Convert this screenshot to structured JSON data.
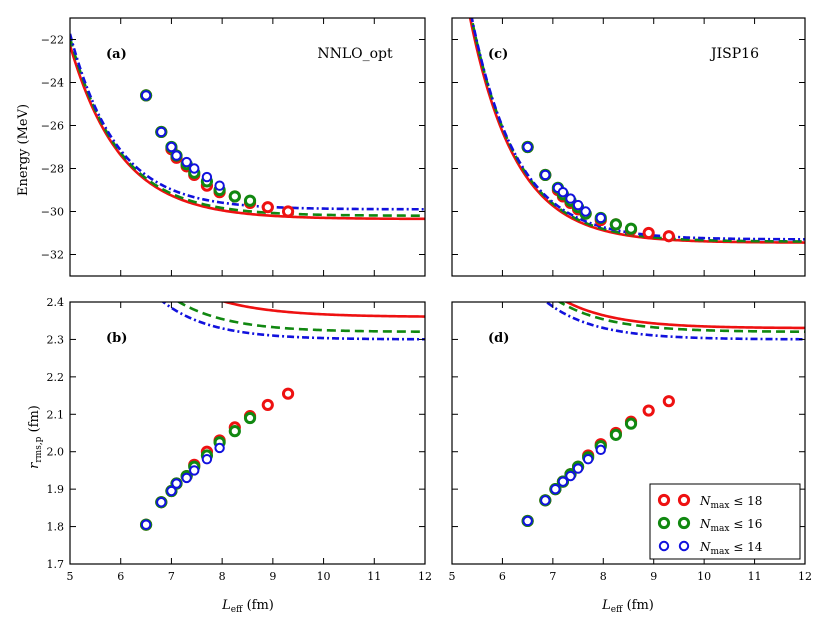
{
  "colors": {
    "n18": "#ee1111",
    "n16": "#118811",
    "n14": "#1111dd"
  },
  "legend": [
    {
      "key": "n18",
      "label": "N",
      "sub": "max",
      "rel": " ≤ 18"
    },
    {
      "key": "n16",
      "label": "N",
      "sub": "max",
      "rel": " ≤ 16"
    },
    {
      "key": "n14",
      "label": "N",
      "sub": "max",
      "rel": " ≤ 14"
    }
  ],
  "axes": {
    "energy_ylabel": "Energy (MeV)",
    "radius_ylabel_main": "r",
    "radius_ylabel_sub": "rms,p",
    "radius_ylabel_unit": " (fm)",
    "xlabel_main": "L",
    "xlabel_sub": "eff",
    "xlabel_unit": " (fm)"
  },
  "chart_data": [
    {
      "id": "a",
      "tag": "(a)",
      "name": "NNLO_opt",
      "type": "line+scatter",
      "xlim": [
        5,
        12
      ],
      "ylim": [
        -33,
        -21
      ],
      "xticks": [
        "5",
        "6",
        "7",
        "8",
        "9",
        "10",
        "11",
        "12"
      ],
      "yticks": [
        "-32",
        "-30",
        "-28",
        "-26",
        "-24",
        "-22"
      ],
      "curves": [
        {
          "key": "n18",
          "style": "solid",
          "asym": -30.35,
          "A": 1200,
          "k": 1.0
        },
        {
          "key": "n16",
          "style": "dashed",
          "asym": -30.2,
          "A": 1500,
          "k": 1.04
        },
        {
          "key": "n14",
          "style": "dashdot",
          "asym": -29.9,
          "A": 1900,
          "k": 1.09
        }
      ],
      "points": [
        {
          "key": "n18",
          "x": [
            6.5,
            6.8,
            7.0,
            7.1,
            7.3,
            7.45,
            7.7,
            7.95,
            8.25,
            8.55,
            8.9,
            9.3
          ],
          "y": [
            -24.6,
            -26.3,
            -27.1,
            -27.5,
            -27.9,
            -28.3,
            -28.8,
            -29.1,
            -29.3,
            -29.6,
            -29.8,
            -30.0
          ]
        },
        {
          "key": "n16",
          "x": [
            6.5,
            6.8,
            7.0,
            7.1,
            7.3,
            7.45,
            7.7,
            7.95,
            8.25,
            8.55
          ],
          "y": [
            -24.6,
            -26.3,
            -27.0,
            -27.4,
            -27.8,
            -28.2,
            -28.6,
            -29.0,
            -29.3,
            -29.5
          ]
        },
        {
          "key": "n14",
          "x": [
            6.5,
            6.8,
            7.0,
            7.1,
            7.3,
            7.45,
            7.7,
            7.95
          ],
          "y": [
            -24.6,
            -26.3,
            -27.0,
            -27.4,
            -27.7,
            -28.0,
            -28.4,
            -28.8
          ]
        }
      ]
    },
    {
      "id": "c",
      "tag": "(c)",
      "name": "JISP16",
      "type": "line+scatter",
      "xlim": [
        5,
        12
      ],
      "ylim": [
        -33,
        -21
      ],
      "xticks": [
        "5",
        "6",
        "7",
        "8",
        "9",
        "10",
        "11",
        "12"
      ],
      "yticks": [
        "-32",
        "-30",
        "-28",
        "-26",
        "-24",
        "-22"
      ],
      "curves": [
        {
          "key": "n18",
          "style": "solid",
          "asym": -31.45,
          "A": 3800,
          "k": 1.1
        },
        {
          "key": "n16",
          "style": "dashed",
          "asym": -31.4,
          "A": 3900,
          "k": 1.1
        },
        {
          "key": "n14",
          "style": "dashdot",
          "asym": -31.3,
          "A": 4100,
          "k": 1.11
        }
      ],
      "points": [
        {
          "key": "n18",
          "x": [
            6.5,
            6.85,
            7.1,
            7.2,
            7.35,
            7.5,
            7.65,
            7.95,
            8.25,
            8.55,
            8.9,
            9.3
          ],
          "y": [
            -27.0,
            -28.3,
            -29.0,
            -29.3,
            -29.6,
            -29.9,
            -30.1,
            -30.4,
            -30.6,
            -30.85,
            -31.0,
            -31.15
          ]
        },
        {
          "key": "n16",
          "x": [
            6.5,
            6.85,
            7.1,
            7.2,
            7.35,
            7.5,
            7.65,
            7.95,
            8.25,
            8.55
          ],
          "y": [
            -27.0,
            -28.3,
            -28.9,
            -29.2,
            -29.5,
            -29.8,
            -30.1,
            -30.3,
            -30.6,
            -30.8
          ]
        },
        {
          "key": "n14",
          "x": [
            6.5,
            6.85,
            7.1,
            7.2,
            7.35,
            7.5,
            7.65,
            7.95
          ],
          "y": [
            -27.0,
            -28.3,
            -28.9,
            -29.1,
            -29.4,
            -29.7,
            -30.0,
            -30.3
          ]
        }
      ]
    },
    {
      "id": "b",
      "tag": "(b)",
      "name": "",
      "type": "line+scatter",
      "xlim": [
        5,
        12
      ],
      "ylim": [
        1.7,
        2.4
      ],
      "xticks": [
        "5",
        "6",
        "7",
        "8",
        "9",
        "10",
        "11",
        "12"
      ],
      "yticks": [
        "1.7",
        "1.8",
        "1.9",
        "2.0",
        "2.1",
        "2.2",
        "2.3",
        "2.4"
      ],
      "curves": [
        {
          "key": "n18",
          "style": "solid",
          "asym": 2.36,
          "A": 57.1,
          "k": 0.9
        },
        {
          "key": "n16",
          "style": "dashed",
          "asym": 2.32,
          "A": 94.9,
          "k": 0.99
        },
        {
          "key": "n14",
          "style": "dashdot",
          "asym": 2.3,
          "A": 131.5,
          "k": 1.05
        }
      ],
      "points": [
        {
          "key": "n18",
          "x": [
            6.5,
            6.8,
            7.0,
            7.1,
            7.3,
            7.45,
            7.7,
            7.95,
            8.25,
            8.55,
            8.9,
            9.3
          ],
          "y": [
            1.805,
            1.865,
            1.895,
            1.915,
            1.935,
            1.965,
            2.0,
            2.03,
            2.065,
            2.095,
            2.125,
            2.155
          ]
        },
        {
          "key": "n16",
          "x": [
            6.5,
            6.8,
            7.0,
            7.1,
            7.3,
            7.45,
            7.7,
            7.95,
            8.25,
            8.55
          ],
          "y": [
            1.805,
            1.865,
            1.895,
            1.915,
            1.935,
            1.96,
            1.99,
            2.025,
            2.055,
            2.09
          ]
        },
        {
          "key": "n14",
          "x": [
            6.5,
            6.8,
            7.0,
            7.1,
            7.3,
            7.45,
            7.7,
            7.95
          ],
          "y": [
            1.805,
            1.865,
            1.895,
            1.915,
            1.93,
            1.95,
            1.98,
            2.01
          ]
        }
      ]
    },
    {
      "id": "d",
      "tag": "(d)",
      "name": "",
      "type": "line+scatter",
      "xlim": [
        5,
        12
      ],
      "ylim": [
        1.7,
        2.4
      ],
      "xticks": [
        "5",
        "6",
        "7",
        "8",
        "9",
        "10",
        "11",
        "12"
      ],
      "yticks": [
        "1.7",
        "1.8",
        "1.9",
        "2.0",
        "2.1",
        "2.2",
        "2.3",
        "2.4"
      ],
      "curves": [
        {
          "key": "n18",
          "style": "solid",
          "asym": 2.33,
          "A": 87.6,
          "k": 0.98
        },
        {
          "key": "n16",
          "style": "dashed",
          "asym": 2.32,
          "A": 100.7,
          "k": 1.0
        },
        {
          "key": "n14",
          "style": "dashdot",
          "asym": 2.3,
          "A": 136.5,
          "k": 1.05
        }
      ],
      "points": [
        {
          "key": "n18",
          "x": [
            6.5,
            6.85,
            7.05,
            7.2,
            7.35,
            7.5,
            7.7,
            7.95,
            8.25,
            8.55,
            8.9,
            9.3
          ],
          "y": [
            1.815,
            1.87,
            1.9,
            1.92,
            1.94,
            1.96,
            1.99,
            2.02,
            2.05,
            2.08,
            2.11,
            2.135
          ]
        },
        {
          "key": "n16",
          "x": [
            6.5,
            6.85,
            7.05,
            7.2,
            7.35,
            7.5,
            7.7,
            7.95,
            8.25,
            8.55
          ],
          "y": [
            1.815,
            1.87,
            1.9,
            1.92,
            1.94,
            1.96,
            1.985,
            2.015,
            2.045,
            2.075
          ]
        },
        {
          "key": "n14",
          "x": [
            6.5,
            6.85,
            7.05,
            7.2,
            7.35,
            7.5,
            7.7,
            7.95
          ],
          "y": [
            1.815,
            1.87,
            1.9,
            1.92,
            1.935,
            1.955,
            1.98,
            2.005
          ]
        }
      ]
    }
  ]
}
